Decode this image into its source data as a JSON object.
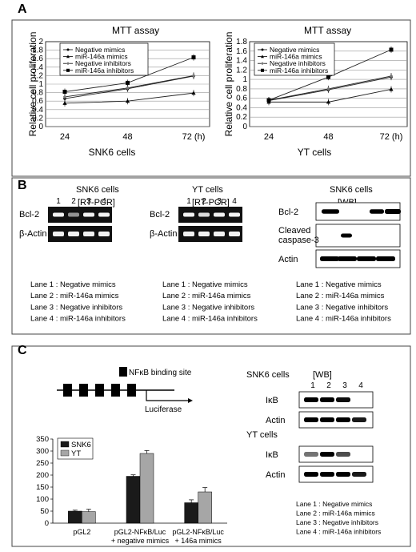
{
  "panels": {
    "A": "A",
    "B": "B",
    "C": "C"
  },
  "mtt": {
    "charts": [
      {
        "title": "MTT assay",
        "ylabel": "Relative cell proliferation",
        "xlabel": "SNK6 cells",
        "x_ticks": [
          "24",
          "48",
          "72 (h)"
        ],
        "y_ticks": [
          "0",
          "0.2",
          "0.4",
          "0.6",
          "0.8",
          "1",
          "1.2",
          "1.4",
          "1.6",
          "1.8",
          "2"
        ],
        "legend": [
          "Negative mimics",
          "miR-146a mimics",
          "Negative inhibitors",
          "miR-146a inhibitors"
        ]
      },
      {
        "title": "MTT assay",
        "ylabel": "Relative cell proliferation",
        "xlabel": "YT cells",
        "x_ticks": [
          "24",
          "48",
          "72 (h)"
        ],
        "y_ticks": [
          "0",
          "0.2",
          "0.4",
          "0.6",
          "0.8",
          "1",
          "1.2",
          "1.4",
          "1.6",
          "1.8"
        ],
        "legend": [
          "Negative mimics",
          "miR-146a mimics",
          "Negative inhibitors",
          "miR-146a inhibitors"
        ]
      }
    ]
  },
  "chart_data": [
    {
      "type": "line",
      "title": "MTT assay",
      "xlabel": "SNK6 cells",
      "ylabel": "Relative cell proliferation",
      "x": [
        24,
        48,
        72
      ],
      "ylim": [
        0,
        2
      ],
      "series": [
        {
          "name": "Negative mimics",
          "values": [
            0.66,
            0.89,
            1.19
          ]
        },
        {
          "name": "miR-146a mimics",
          "values": [
            0.55,
            0.6,
            0.79
          ]
        },
        {
          "name": "Negative inhibitors",
          "values": [
            0.7,
            0.91,
            1.2
          ]
        },
        {
          "name": "miR-146a inhibitors",
          "values": [
            0.82,
            1.03,
            1.63
          ]
        }
      ]
    },
    {
      "type": "line",
      "title": "MTT assay",
      "xlabel": "YT cells",
      "ylabel": "Relative cell proliferation",
      "x": [
        24,
        48,
        72
      ],
      "ylim": [
        0,
        1.8
      ],
      "series": [
        {
          "name": "Negative mimics",
          "values": [
            0.55,
            0.78,
            1.05
          ]
        },
        {
          "name": "miR-146a mimics",
          "values": [
            0.52,
            0.52,
            0.79
          ]
        },
        {
          "name": "Negative inhibitors",
          "values": [
            0.56,
            0.8,
            1.07
          ]
        },
        {
          "name": "miR-146a inhibitors",
          "values": [
            0.56,
            1.05,
            1.63
          ]
        }
      ]
    },
    {
      "type": "bar",
      "categories": [
        "pGL2",
        "pGL2-NFκB/Luc\n+ negative mimics",
        "pGL2-NFκB/Luc\n+ 146a mimics"
      ],
      "ylim": [
        0,
        350
      ],
      "series": [
        {
          "name": "SNK6",
          "values": [
            50,
            195,
            85
          ],
          "color": "#1a1a1a"
        },
        {
          "name": "YT",
          "values": [
            48,
            290,
            130
          ],
          "color": "#a6a6a6"
        }
      ],
      "y_ticks": [
        "0",
        "50",
        "100",
        "150",
        "200",
        "250",
        "300",
        "350"
      ]
    }
  ],
  "rtpcr": {
    "snk6_title": "SNK6 cells",
    "yt_title": "YT cells",
    "method": "[RT-PCR]",
    "lanes": [
      "1",
      "2",
      "3",
      "4"
    ],
    "rows": [
      "Bcl-2",
      "β-Actin"
    ]
  },
  "wb_b": {
    "title": "SNK6 cells",
    "method": "[WB]",
    "rows": [
      "Bcl-2",
      "Cleaved\ncaspase-3",
      "Actin"
    ]
  },
  "lane_legend": [
    "Lane 1 : Negative mimics",
    "Lane 2 : miR-146a mimics",
    "Lane 3 : Negative inhibitors",
    "Lane 4 : miR-146a inhibitors"
  ],
  "construct": {
    "site_label": "NFκB binding site",
    "reporter": "Luciferase"
  },
  "wb_c": {
    "snk6": "SNK6 cells",
    "yt": "YT cells",
    "method": "[WB]",
    "lanes": [
      "1",
      "2",
      "3",
      "4"
    ],
    "rows": [
      "IκB",
      "Actin"
    ]
  }
}
